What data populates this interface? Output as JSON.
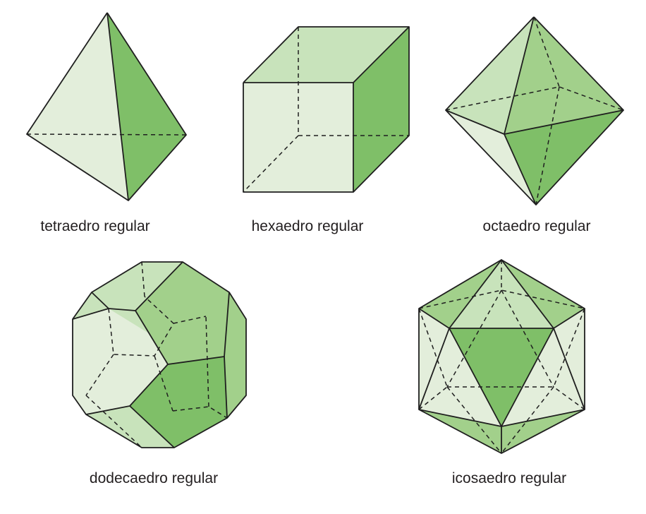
{
  "colors": {
    "pale": "#e3eedb",
    "light": "#c8e3bb",
    "medium": "#a2d08b",
    "dark": "#7fbf68",
    "edge": "#1f1f1f"
  },
  "solids": [
    {
      "label": "tetraedro regular"
    },
    {
      "label": "hexaedro regular"
    },
    {
      "label": "octaedro regular"
    },
    {
      "label": "dodecaedro regular"
    },
    {
      "label": "icosaedro regular"
    }
  ]
}
